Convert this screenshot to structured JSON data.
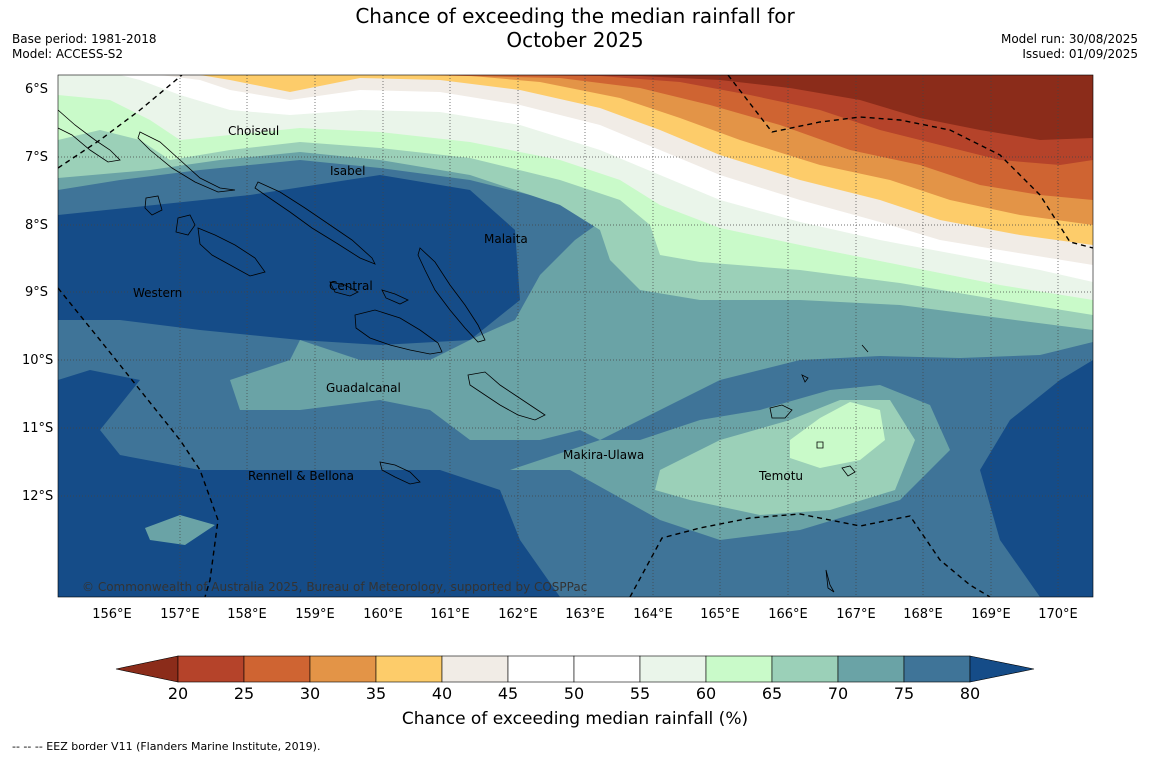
{
  "header": {
    "title_line1": "Chance of exceeding the median rainfall for",
    "title_line2": "October 2025",
    "base_period": "Base period: 1981-2018",
    "model": "Model: ACCESS-S2",
    "model_run": "Model run: 30/08/2025",
    "issued": "Issued: 01/09/2025"
  },
  "map": {
    "lat_labels": [
      "6°S",
      "7°S",
      "8°S",
      "9°S",
      "10°S",
      "11°S",
      "12°S"
    ],
    "lon_labels": [
      "156°E",
      "157°E",
      "158°E",
      "159°E",
      "160°E",
      "161°E",
      "162°E",
      "163°E",
      "164°E",
      "165°E",
      "166°E",
      "167°E",
      "168°E",
      "169°E",
      "170°E"
    ],
    "regions": [
      "Choiseul",
      "Isabel",
      "Malaita",
      "Western",
      "Central",
      "Guadalcanal",
      "Makira-Ulawa",
      "Rennell & Bellona",
      "Temotu"
    ],
    "copyright": "© Commonwealth of Australia 2025, Bureau of Meteorology, supported by COSPPac"
  },
  "colorbar": {
    "ticks": [
      "20",
      "25",
      "30",
      "35",
      "40",
      "45",
      "50",
      "55",
      "60",
      "65",
      "70",
      "75",
      "80"
    ],
    "label": "Chance of exceeding median rainfall (%)",
    "colors": [
      "#8b2c1a",
      "#b5432a",
      "#cf6432",
      "#e39447",
      "#fdcc6a",
      "#f1ece6",
      "#ffffff",
      "#ffffff",
      "#eaf5ea",
      "#c9fac9",
      "#9bd0b8",
      "#6aa3a6",
      "#3f7498",
      "#154c88"
    ]
  },
  "legend_note": "--  --  -- EEZ border V11 (Flanders Marine Institute, 2019)."
}
